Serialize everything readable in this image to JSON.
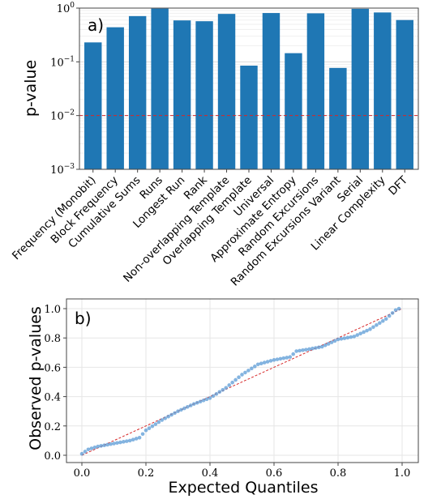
{
  "chart_data": [
    {
      "type": "bar",
      "panel_label": "a)",
      "ylabel": "p-value",
      "yscale": "log",
      "ylim": [
        0.001,
        1
      ],
      "yticks": [
        {
          "value": 0.001,
          "label": "10",
          "exp": "−3"
        },
        {
          "value": 0.01,
          "label": "10",
          "exp": "−2"
        },
        {
          "value": 0.1,
          "label": "10",
          "exp": "−1"
        },
        {
          "value": 1,
          "label": "10",
          "exp": "0"
        }
      ],
      "grid": true,
      "color": "#1f77b4",
      "threshold": {
        "value": 0.01,
        "color": "#d62728",
        "style": "dashed"
      },
      "categories": [
        "Frequency (Monobit)",
        "Block Frequency",
        "Cumulative Sums",
        "Runs",
        "Longest Run",
        "Rank",
        "Non-overlapping Template",
        "Overlapping Template",
        "Universal",
        "Approximate Entropy",
        "Random Excursions",
        "Random Excursions Variant",
        "Serial",
        "Linear Complexity",
        "DFT"
      ],
      "values": [
        0.23,
        0.44,
        0.71,
        0.98,
        0.59,
        0.57,
        0.78,
        0.085,
        0.81,
        0.145,
        0.8,
        0.077,
        0.97,
        0.83,
        0.6
      ]
    },
    {
      "type": "scatter",
      "panel_label": "b)",
      "xlabel": "Expected Quantiles",
      "ylabel": "Observed p-values",
      "xlim": [
        0,
        1
      ],
      "ylim": [
        0,
        1
      ],
      "xticks": [
        "0.0",
        "0.2",
        "0.4",
        "0.6",
        "0.8",
        "1.0"
      ],
      "yticks": [
        "0.0",
        "0.2",
        "0.4",
        "0.6",
        "0.8",
        "1.0"
      ],
      "grid": true,
      "marker_color": "#5b9bd5",
      "reference_line": {
        "from": [
          0,
          0
        ],
        "to": [
          1,
          1
        ],
        "color": "#d62728",
        "style": "dashed"
      },
      "anchor_points": [
        [
          0.0,
          0.01
        ],
        [
          0.02,
          0.04
        ],
        [
          0.05,
          0.06
        ],
        [
          0.1,
          0.08
        ],
        [
          0.15,
          0.1
        ],
        [
          0.18,
          0.12
        ],
        [
          0.2,
          0.17
        ],
        [
          0.25,
          0.24
        ],
        [
          0.3,
          0.3
        ],
        [
          0.35,
          0.35
        ],
        [
          0.4,
          0.39
        ],
        [
          0.45,
          0.46
        ],
        [
          0.5,
          0.55
        ],
        [
          0.55,
          0.62
        ],
        [
          0.6,
          0.65
        ],
        [
          0.65,
          0.67
        ],
        [
          0.67,
          0.71
        ],
        [
          0.7,
          0.72
        ],
        [
          0.75,
          0.74
        ],
        [
          0.8,
          0.79
        ],
        [
          0.85,
          0.81
        ],
        [
          0.9,
          0.86
        ],
        [
          0.95,
          0.93
        ],
        [
          0.98,
          0.99
        ],
        [
          0.99,
          1.0
        ]
      ],
      "n_points": 100
    }
  ]
}
